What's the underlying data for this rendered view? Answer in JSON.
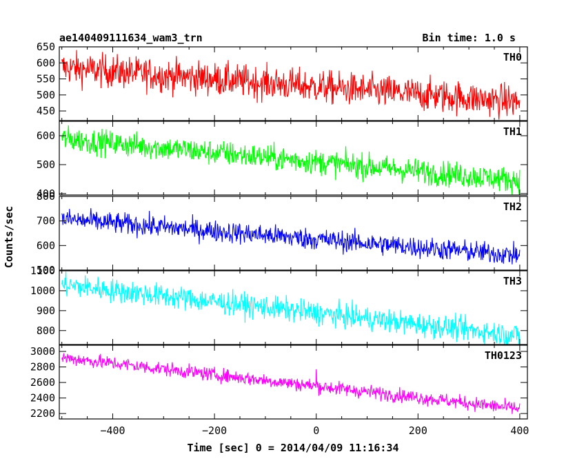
{
  "header": {
    "title": "ae140409111634_wam3_trn",
    "bin_time": "Bin time: 1.0 s"
  },
  "axes": {
    "xlabel": "Time [sec] 0 = 2014/04/09 11:16:34",
    "ylabel": "Counts/sec"
  },
  "chart_data": [
    {
      "type": "line",
      "name": "TH0",
      "color": "#ff0000",
      "x_range": [
        -500,
        400
      ],
      "xlim": [
        -505,
        415
      ],
      "ylim": [
        420,
        650
      ],
      "yticks": [
        450,
        500,
        550,
        600,
        650
      ],
      "ytick_labels": [
        "450",
        "500",
        "550",
        "600",
        "650"
      ],
      "trend_start": 585,
      "trend_end": 478,
      "noise": 26,
      "spikes": []
    },
    {
      "type": "line",
      "name": "TH1",
      "color": "#00ff00",
      "x_range": [
        -500,
        400
      ],
      "xlim": [
        -505,
        415
      ],
      "ylim": [
        395,
        650
      ],
      "yticks": [
        400,
        500,
        600
      ],
      "ytick_labels": [
        "400",
        "500",
        "600"
      ],
      "trend_start": 590,
      "trend_end": 445,
      "noise": 22,
      "spikes": []
    },
    {
      "type": "line",
      "name": "TH2",
      "color": "#0000ff",
      "x_range": [
        -500,
        400
      ],
      "xlim": [
        -505,
        415
      ],
      "ylim": [
        500,
        800
      ],
      "yticks": [
        500,
        600,
        700,
        800
      ],
      "ytick_labels": [
        "500",
        "600",
        "700",
        "800"
      ],
      "trend_start": 708,
      "trend_end": 560,
      "noise": 22,
      "spikes": []
    },
    {
      "type": "line",
      "name": "TH3",
      "color": "#00ffff",
      "x_range": [
        -500,
        400
      ],
      "xlim": [
        -505,
        415
      ],
      "ylim": [
        730,
        1100
      ],
      "yticks": [
        800,
        900,
        1000,
        1100
      ],
      "ytick_labels": [
        "800",
        "900",
        "1000",
        "1100"
      ],
      "trend_start": 1030,
      "trend_end": 775,
      "noise": 30,
      "spikes": []
    },
    {
      "type": "line",
      "name": "TH0123",
      "color": "#ff00ff",
      "x_range": [
        -500,
        400
      ],
      "xlim": [
        -505,
        415
      ],
      "ylim": [
        2130,
        3080
      ],
      "yticks": [
        2200,
        2400,
        2600,
        2800,
        3000
      ],
      "ytick_labels": [
        "2200",
        "2400",
        "2600",
        "2800",
        "3000"
      ],
      "trend_start": 2920,
      "trend_end": 2260,
      "noise": 45,
      "spikes": [
        {
          "x": 0,
          "y": 2770
        }
      ]
    }
  ],
  "xaxis": {
    "ticks": [
      -400,
      -200,
      0,
      200,
      400
    ],
    "tick_labels": [
      "−400",
      "−200",
      "0",
      "200",
      "400"
    ],
    "minor_step": 50
  }
}
